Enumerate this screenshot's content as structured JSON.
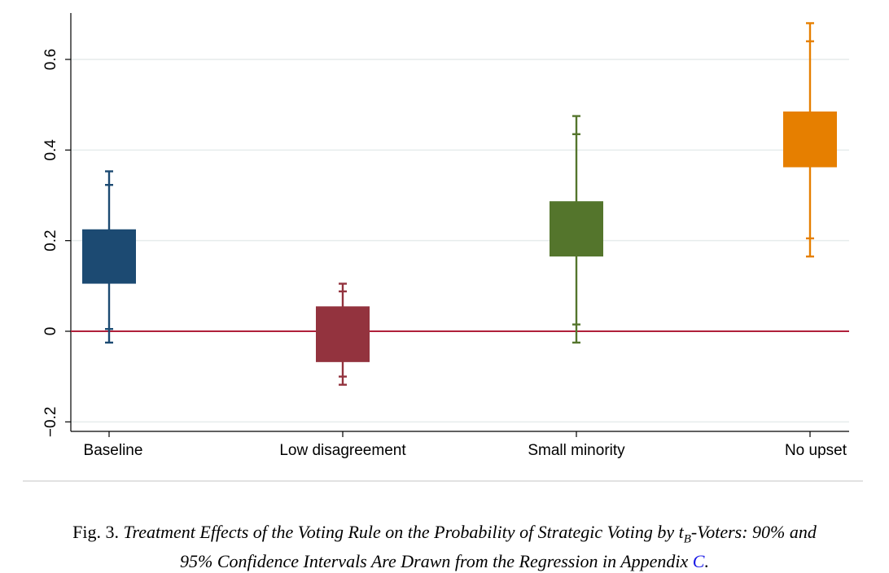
{
  "chart_data": {
    "type": "box-interval",
    "title": "",
    "xlabel": "",
    "ylabel": "",
    "ylim": [
      -0.22,
      0.7
    ],
    "yticks": [
      -0.2,
      0,
      0.2,
      0.4,
      0.6
    ],
    "ytick_labels": [
      "−0.2",
      "0",
      "0.2",
      "0.4",
      "0.6"
    ],
    "reference_line": {
      "y": 0,
      "color": "#b0203a"
    },
    "grid": true,
    "categories": [
      "Baseline",
      "Low disagreement",
      "Small minority",
      "No upset"
    ],
    "series": [
      {
        "category": "Baseline",
        "color": "#1c4a72",
        "box_low": 0.105,
        "box_high": 0.225,
        "ci90": [
          0.005,
          0.323
        ],
        "ci95": [
          -0.025,
          0.353
        ]
      },
      {
        "category": "Low disagreement",
        "color": "#93333e",
        "box_low": -0.068,
        "box_high": 0.055,
        "ci90": [
          -0.1,
          0.088
        ],
        "ci95": [
          -0.118,
          0.105
        ]
      },
      {
        "category": "Small minority",
        "color": "#54752c",
        "box_low": 0.165,
        "box_high": 0.287,
        "ci90": [
          0.015,
          0.435
        ],
        "ci95": [
          -0.025,
          0.475
        ]
      },
      {
        "category": "No upset",
        "color": "#e67f00",
        "box_low": 0.362,
        "box_high": 0.485,
        "ci90": [
          0.205,
          0.64
        ],
        "ci95": [
          0.165,
          0.68
        ]
      }
    ]
  },
  "caption": {
    "prefix": "Fig. 3. ",
    "text_part1": "Treatment Effects of the Voting Rule on the Probability of Strategic Voting by t",
    "subscript": "B",
    "text_part2": "-Voters: 90% and",
    "text_line2": "95% Confidence Intervals Are Drawn from the Regression in Appendix ",
    "link": "C",
    "end": "."
  }
}
